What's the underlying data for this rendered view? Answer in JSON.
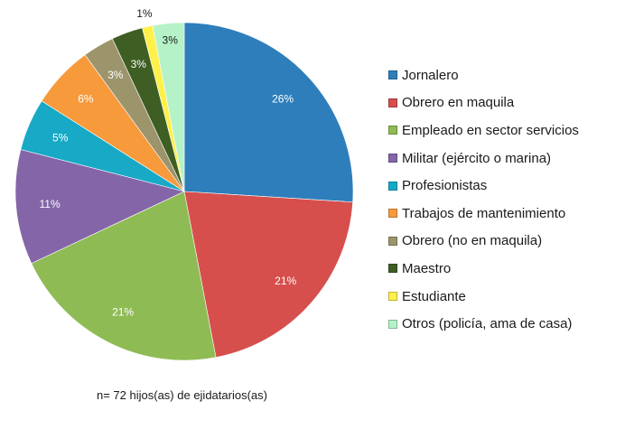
{
  "chart_data": {
    "type": "pie",
    "categories": [
      "Jornalero",
      "Obrero en maquila",
      "Empleado  en sector servicios",
      "Militar (ejército o marina)",
      "Profesionistas",
      "Trabajos de mantenimiento",
      "Obrero (no en maquila)",
      "Maestro",
      "Estudiante",
      "Otros (policía, ama de casa)"
    ],
    "values": [
      26,
      21,
      21,
      11,
      5,
      6,
      3,
      3,
      1,
      3
    ],
    "value_labels": [
      "26%",
      "21%",
      "21%",
      "11%",
      "5%",
      "6%",
      "3%",
      "3%",
      "1%",
      "3%"
    ],
    "colors": [
      "#2e7ebb",
      "#d64f4d",
      "#8fbb55",
      "#8466a8",
      "#17a9c6",
      "#f79a3c",
      "#9c946b",
      "#3e5e23",
      "#fff04a",
      "#b6f2c8"
    ],
    "label_colors": [
      "#ffffff",
      "#ffffff",
      "#ffffff",
      "#ffffff",
      "#ffffff",
      "#ffffff",
      "#ffffff",
      "#ffffff",
      "#1a1a1a",
      "#1a1a1a"
    ],
    "start_angle": "12 o'clock",
    "direction": "clockwise",
    "legend_placement": "right"
  },
  "note": "n= 72 hijos(as) de ejidatarios(as)"
}
